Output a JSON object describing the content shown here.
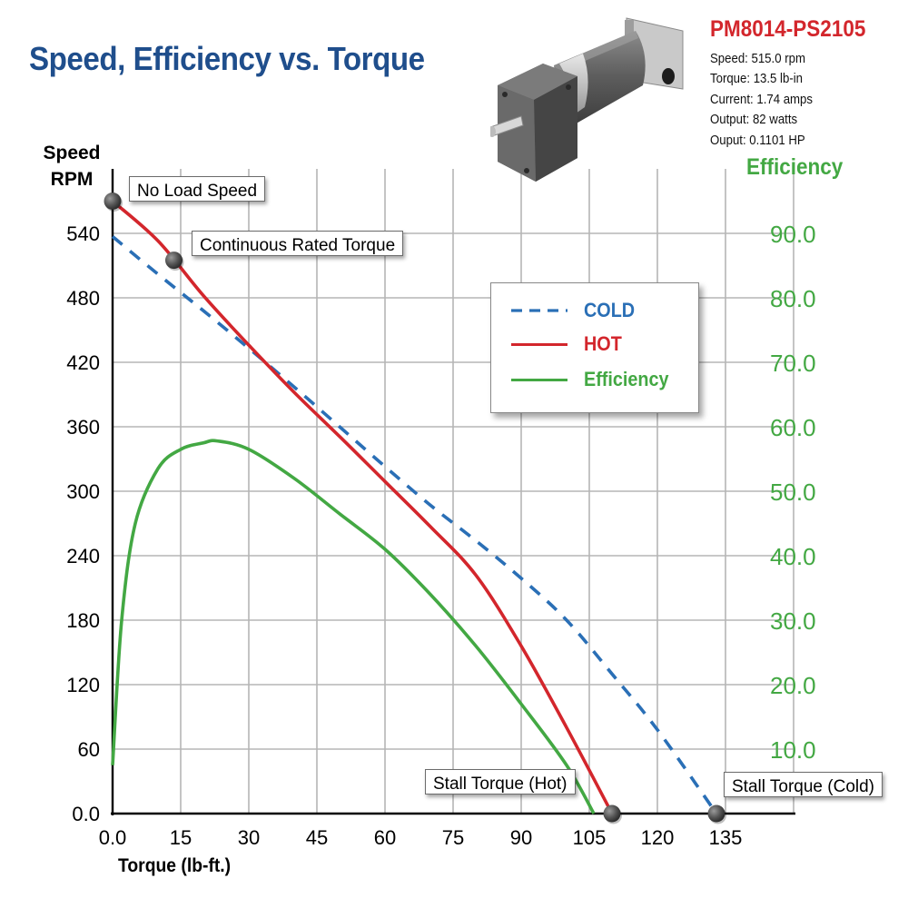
{
  "title": "Speed, Efficiency vs. Torque",
  "product": {
    "model": "PM8014-PS2105",
    "specs": [
      "Speed: 515.0 rpm",
      "Torque: 13.5 lb-in",
      "Current: 1.74 amps",
      "Output: 82 watts",
      "Ouput: 0.1101 HP"
    ]
  },
  "colors": {
    "title": "#1f4e8c",
    "model": "#d3262c",
    "cold": "#2a6fb6",
    "hot": "#d3262c",
    "efficiency": "#43a843",
    "grid": "#b5b5b5"
  },
  "annotations": {
    "no_load_speed": "No Load Speed",
    "continuous_rated_torque": "Continuous Rated Torque",
    "stall_torque_hot": "Stall Torque (Hot)",
    "stall_torque_cold": "Stall Torque (Cold)"
  },
  "chart_data": {
    "type": "line",
    "title": "Speed, Efficiency vs. Torque",
    "xlabel": "Torque (lb-ft.)",
    "ylabel": "Speed RPM",
    "y2label": "Efficiency",
    "xlim": [
      0,
      150
    ],
    "ylim": [
      0,
      600
    ],
    "y2lim": [
      0,
      100
    ],
    "xticks": [
      "0.0",
      "15",
      "30",
      "45",
      "60",
      "75",
      "90",
      "105",
      "120",
      "135"
    ],
    "xtick_values": [
      0,
      15,
      30,
      45,
      60,
      75,
      90,
      105,
      120,
      135
    ],
    "yticks": [
      "0.0",
      "60",
      "120",
      "180",
      "240",
      "300",
      "360",
      "420",
      "480",
      "540"
    ],
    "ytick_values": [
      0,
      60,
      120,
      180,
      240,
      300,
      360,
      420,
      480,
      540
    ],
    "y2ticks": [
      "10.0",
      "20.0",
      "30.0",
      "40.0",
      "50.0",
      "60.0",
      "70.0",
      "80.0",
      "90.0"
    ],
    "y2tick_values": [
      10,
      20,
      30,
      40,
      50,
      60,
      70,
      80,
      90
    ],
    "grid": true,
    "legend_position": "upper-right inside plot",
    "series": [
      {
        "name": "COLD",
        "style": "dashed",
        "axis": "left",
        "x": [
          0,
          10,
          20,
          30,
          40,
          50,
          60,
          70,
          80,
          90,
          100,
          110,
          120,
          133
        ],
        "y": [
          537,
          502,
          468,
          433,
          397,
          360,
          323,
          287,
          254,
          219,
          180,
          130,
          78,
          0
        ]
      },
      {
        "name": "HOT",
        "style": "solid",
        "axis": "left",
        "x": [
          0,
          10,
          20,
          30,
          40,
          50,
          60,
          70,
          80,
          90,
          100,
          110
        ],
        "y": [
          570,
          533,
          482,
          436,
          392,
          351,
          309,
          267,
          222,
          156,
          80,
          0
        ]
      },
      {
        "name": "Efficiency",
        "style": "solid",
        "axis": "right",
        "x": [
          0,
          2,
          5,
          10,
          15,
          20,
          23,
          30,
          40,
          50,
          60,
          70,
          80,
          90,
          100,
          106
        ],
        "y": [
          7.5,
          30,
          45,
          53.5,
          56.5,
          57.5,
          57.8,
          56.5,
          52,
          46.5,
          41,
          34,
          26,
          17,
          7.5,
          0
        ]
      }
    ],
    "markers": [
      {
        "label": "No Load Speed",
        "x": 0,
        "y": 570
      },
      {
        "label": "Continuous Rated Torque",
        "x": 13.5,
        "y": 515
      },
      {
        "label": "Stall Torque (Hot)",
        "x": 110,
        "y": 0
      },
      {
        "label": "Stall Torque (Cold)",
        "x": 133,
        "y": 0
      }
    ]
  }
}
